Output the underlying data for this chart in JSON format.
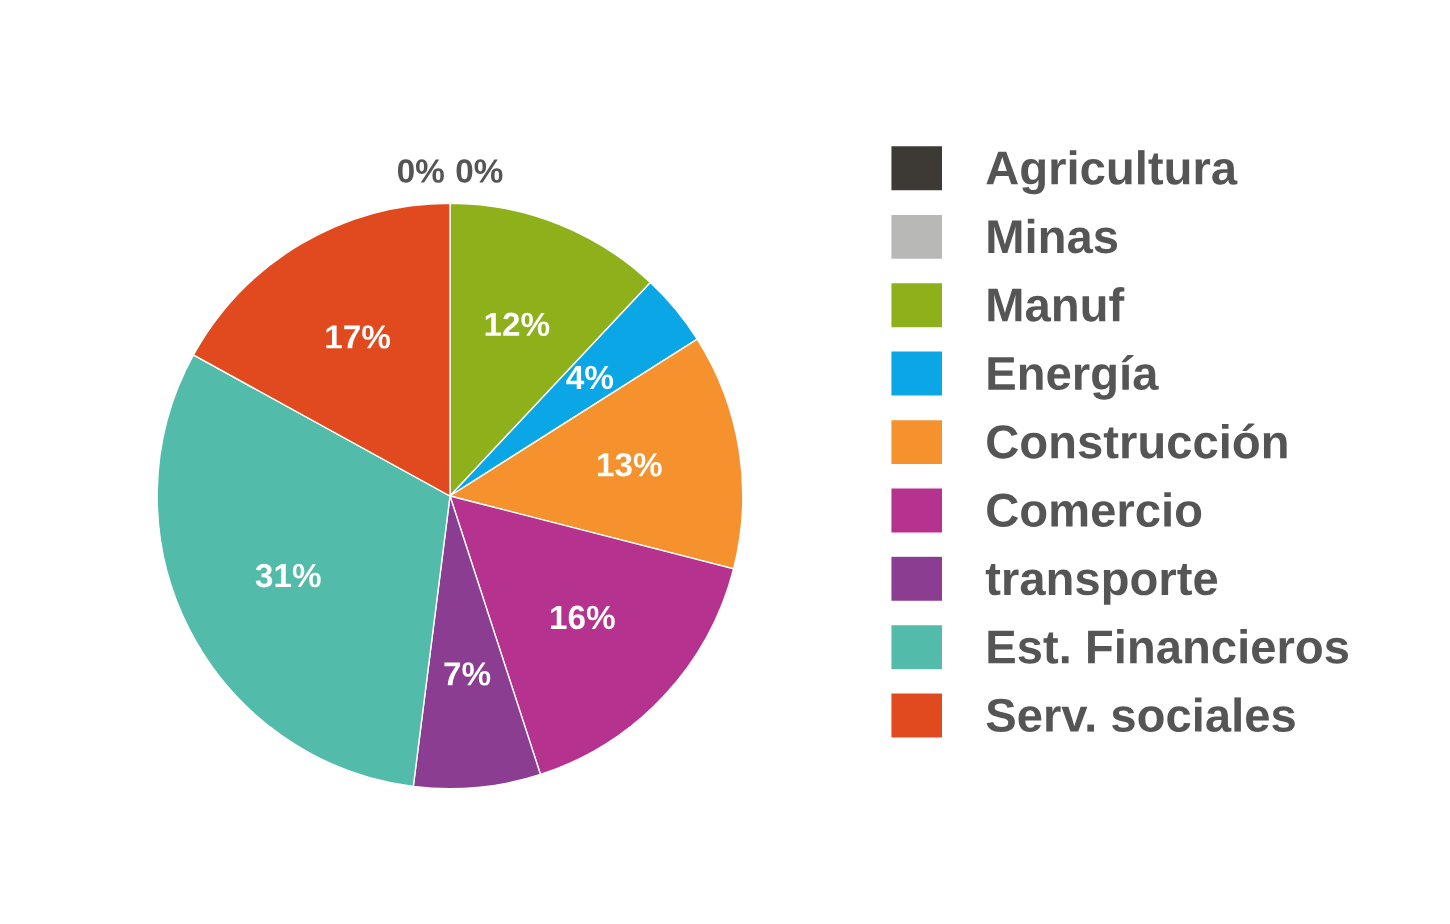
{
  "chart_data": {
    "type": "pie",
    "categories": [
      "Agricultura",
      "Minas",
      "Manuf",
      "Energía",
      "Construcción",
      "Comercio",
      "transporte",
      "Est. Financieros",
      "Serv. sociales"
    ],
    "values": [
      0,
      0,
      12,
      4,
      13,
      16,
      7,
      31,
      17
    ],
    "colors": [
      "#3d3935",
      "#b8b8b6",
      "#8eb01b",
      "#0aa6e6",
      "#f5922e",
      "#b5338e",
      "#8b3e91",
      "#52bba9",
      "#e04a1e"
    ],
    "value_labels": [
      "0%",
      "0%",
      "12%",
      "4%",
      "13%",
      "16%",
      "7%",
      "31%",
      "17%"
    ],
    "legend": "right"
  }
}
